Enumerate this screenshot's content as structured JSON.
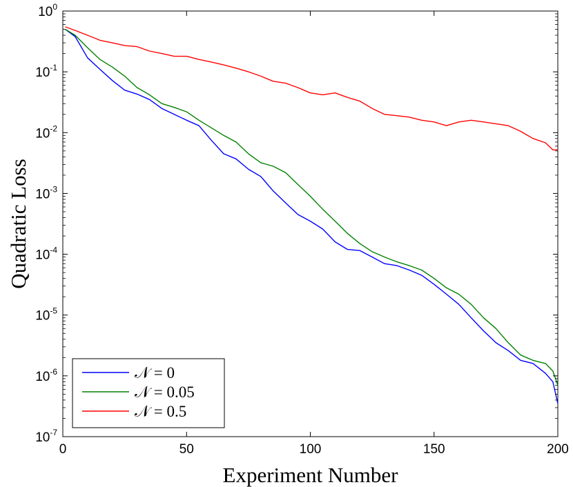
{
  "chart_data": {
    "type": "line",
    "xlabel": "Experiment Number",
    "ylabel": "Quadratic Loss",
    "xlim": [
      0,
      200
    ],
    "ylim": [
      1e-07,
      1
    ],
    "yscale": "log",
    "grid": false,
    "legend_position": "bottom-left",
    "x_ticks": [
      {
        "value": 0,
        "label": "0"
      },
      {
        "value": 50,
        "label": "50"
      },
      {
        "value": 100,
        "label": "100"
      },
      {
        "value": 150,
        "label": "150"
      },
      {
        "value": 200,
        "label": "200"
      }
    ],
    "y_ticks": [
      {
        "value": 1,
        "base": "10",
        "exp": "0"
      },
      {
        "value": 0.1,
        "base": "10",
        "exp": "-1"
      },
      {
        "value": 0.01,
        "base": "10",
        "exp": "-2"
      },
      {
        "value": 0.001,
        "base": "10",
        "exp": "-3"
      },
      {
        "value": 0.0001,
        "base": "10",
        "exp": "-4"
      },
      {
        "value": 1e-05,
        "base": "10",
        "exp": "-5"
      },
      {
        "value": 1e-06,
        "base": "10",
        "exp": "-6"
      },
      {
        "value": 1e-07,
        "base": "10",
        "exp": "-7"
      }
    ],
    "series": [
      {
        "name": "N = 0",
        "legend_label": "𝒩 = 0",
        "color": "#0000ff",
        "x": [
          1,
          5,
          10,
          15,
          20,
          25,
          30,
          35,
          40,
          45,
          50,
          55,
          60,
          65,
          70,
          75,
          80,
          85,
          90,
          95,
          100,
          105,
          110,
          115,
          120,
          125,
          130,
          135,
          140,
          145,
          150,
          155,
          160,
          165,
          170,
          175,
          180,
          185,
          190,
          195,
          198,
          200
        ],
        "y": [
          0.5,
          0.38,
          0.17,
          0.11,
          0.072,
          0.05,
          0.043,
          0.035,
          0.025,
          0.02,
          0.016,
          0.013,
          0.0075,
          0.0045,
          0.0037,
          0.0025,
          0.0019,
          0.0011,
          0.0007,
          0.00045,
          0.00035,
          0.00026,
          0.00016,
          0.00012,
          0.000115,
          9e-05,
          7e-05,
          6.5e-05,
          5.5e-05,
          4.5e-05,
          3.2e-05,
          2.2e-05,
          1.5e-05,
          9e-06,
          5.5e-06,
          3.5e-06,
          2.6e-06,
          1.8e-06,
          1.6e-06,
          1.1e-06,
          8e-07,
          3.5e-07
        ]
      },
      {
        "name": "N = 0.05",
        "legend_label": "𝒩 = 0.05",
        "color": "#008000",
        "x": [
          1,
          5,
          10,
          15,
          20,
          25,
          30,
          35,
          40,
          45,
          50,
          55,
          60,
          65,
          70,
          75,
          80,
          85,
          90,
          95,
          100,
          105,
          110,
          115,
          120,
          125,
          130,
          135,
          140,
          145,
          150,
          155,
          160,
          165,
          170,
          175,
          180,
          185,
          190,
          195,
          198,
          200
        ],
        "y": [
          0.5,
          0.4,
          0.25,
          0.16,
          0.12,
          0.085,
          0.055,
          0.042,
          0.03,
          0.026,
          0.022,
          0.016,
          0.012,
          0.009,
          0.007,
          0.0045,
          0.0032,
          0.0028,
          0.0022,
          0.0014,
          0.0009,
          0.00055,
          0.00035,
          0.00022,
          0.00015,
          0.00011,
          9e-05,
          7.5e-05,
          6.5e-05,
          5.5e-05,
          4e-05,
          2.8e-05,
          2.2e-05,
          1.5e-05,
          9e-06,
          6e-06,
          3.5e-06,
          2.2e-06,
          1.8e-06,
          1.6e-06,
          1.2e-06,
          7e-07
        ]
      },
      {
        "name": "N = 0.5",
        "legend_label": "𝒩 = 0.5",
        "color": "#ff0000",
        "x": [
          1,
          5,
          10,
          15,
          20,
          25,
          30,
          35,
          40,
          45,
          50,
          55,
          60,
          65,
          70,
          75,
          80,
          85,
          90,
          95,
          100,
          105,
          110,
          115,
          120,
          125,
          130,
          135,
          140,
          145,
          150,
          155,
          160,
          165,
          170,
          175,
          180,
          185,
          190,
          195,
          198,
          200
        ],
        "y": [
          0.55,
          0.48,
          0.4,
          0.33,
          0.3,
          0.27,
          0.26,
          0.22,
          0.2,
          0.18,
          0.18,
          0.16,
          0.145,
          0.13,
          0.115,
          0.1,
          0.085,
          0.07,
          0.065,
          0.055,
          0.045,
          0.042,
          0.045,
          0.038,
          0.033,
          0.025,
          0.02,
          0.019,
          0.018,
          0.016,
          0.015,
          0.013,
          0.015,
          0.016,
          0.015,
          0.014,
          0.013,
          0.0105,
          0.008,
          0.0068,
          0.0052,
          0.0052
        ]
      }
    ]
  }
}
